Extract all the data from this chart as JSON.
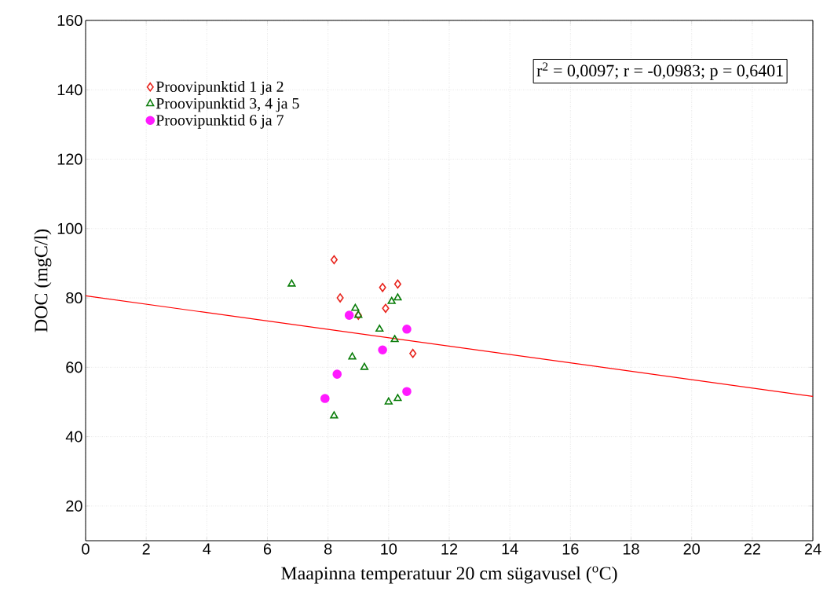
{
  "chart_data": {
    "type": "scatter",
    "xlabel": "Maapinna temperatuur 20 cm sügavusel ($^{o}$C)",
    "ylabel": "DOC (mgC/l)",
    "xlim": [
      0,
      24
    ],
    "ylim": [
      10,
      160
    ],
    "xticks": [
      0,
      2,
      4,
      6,
      8,
      10,
      12,
      14,
      16,
      18,
      20,
      22,
      24
    ],
    "yticks": [
      20,
      40,
      60,
      80,
      100,
      120,
      140,
      160
    ],
    "grid": true,
    "legend": "top left",
    "annotations": [
      "r$^{2}$ = 0,0097;  r = -0,0983; p = 0,6401"
    ],
    "series": [
      {
        "name": "Proovipunktid 1 ja 2",
        "color": "#e8231c",
        "marker": "diamond",
        "x": [
          8.2,
          8.4,
          9.8,
          10.3,
          9.9,
          9.0,
          10.8
        ],
        "values": [
          91,
          80,
          83,
          84,
          77,
          75,
          64
        ]
      },
      {
        "name": "Proovipunktid 3, 4 ja 5",
        "color": "#0a7d0a",
        "marker": "triangle",
        "x": [
          6.8,
          8.9,
          9.0,
          10.1,
          10.3,
          9.7,
          10.2,
          8.8,
          9.2,
          10.0,
          10.3,
          8.2
        ],
        "values": [
          84,
          77,
          75,
          79,
          80,
          71,
          68,
          63,
          60,
          50,
          51,
          46
        ]
      },
      {
        "name": "Proovipunktid 6 ja 7",
        "color": "#ff1aff",
        "marker": "circle",
        "x": [
          8.7,
          10.6,
          9.8,
          8.3,
          7.9,
          10.6
        ],
        "values": [
          75,
          71,
          65,
          58,
          51,
          53
        ]
      },
      {
        "type": "line",
        "color": "#ff0000",
        "marker": "none",
        "x": [
          0,
          24
        ],
        "values": [
          80.6,
          51.6
        ]
      }
    ]
  }
}
